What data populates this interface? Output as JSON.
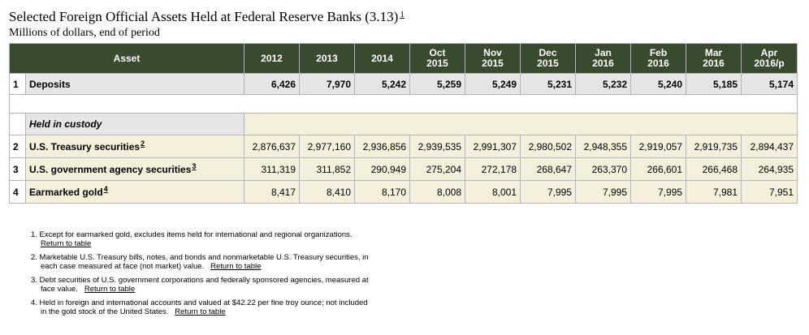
{
  "title": "Selected Foreign Official Assets Held at Federal Reserve Banks (3.13)",
  "title_footnote": "1",
  "subtitle": "Millions of dollars, end of period",
  "table": {
    "asset_header": "Asset",
    "columns": [
      [
        "2012",
        ""
      ],
      [
        "2013",
        ""
      ],
      [
        "2014",
        ""
      ],
      [
        "Oct",
        "2015"
      ],
      [
        "Nov",
        "2015"
      ],
      [
        "Dec",
        "2015"
      ],
      [
        "Jan",
        "2016"
      ],
      [
        "Feb",
        "2016"
      ],
      [
        "Mar",
        "2016"
      ],
      [
        "Apr",
        "2016/p"
      ]
    ],
    "deposits": {
      "index": "1",
      "label": "Deposits",
      "values": [
        "6,426",
        "7,970",
        "5,242",
        "5,259",
        "5,249",
        "5,231",
        "5,232",
        "5,240",
        "5,185",
        "5,174"
      ]
    },
    "custody_header": "Held in custody",
    "rows": [
      {
        "index": "2",
        "label": "U.S. Treasury securities",
        "footnote": "2",
        "values": [
          "2,876,637",
          "2,977,160",
          "2,936,856",
          "2,939,535",
          "2,991,307",
          "2,980,502",
          "2,948,355",
          "2,919,057",
          "2,919,735",
          "2,894,437"
        ]
      },
      {
        "index": "3",
        "label": "U.S. government agency securities",
        "footnote": "3",
        "values": [
          "311,319",
          "311,852",
          "290,949",
          "275,204",
          "272,178",
          "268,647",
          "263,370",
          "266,601",
          "266,468",
          "264,935"
        ]
      },
      {
        "index": "4",
        "label": "Earmarked gold",
        "footnote": "4",
        "values": [
          "8,417",
          "8,410",
          "8,170",
          "8,008",
          "8,001",
          "7,995",
          "7,995",
          "7,995",
          "7,981",
          "7,951"
        ]
      }
    ]
  },
  "notes": [
    {
      "line1": "1.  Except for earmarked gold, excludes items held for international and regional organizations.",
      "line2": "",
      "link": "Return to table"
    },
    {
      "line1": "2.  Marketable U.S. Treasury bills, notes, and bonds and nonmarketable U.S. Treasury securities, in",
      "line2": "each case measured at face (not market) value.",
      "link": "Return to table"
    },
    {
      "line1": "3.  Debt securities of U.S. government corporations and federally sponsored agencies, measured at",
      "line2": "face value.",
      "link": "Return to table"
    },
    {
      "line1": "4.  Held in foreign and international accounts and valued at $42.22 per fine troy ounce; not included",
      "line2": "in the gold stock of the United States.",
      "link": "Return to table"
    }
  ]
}
